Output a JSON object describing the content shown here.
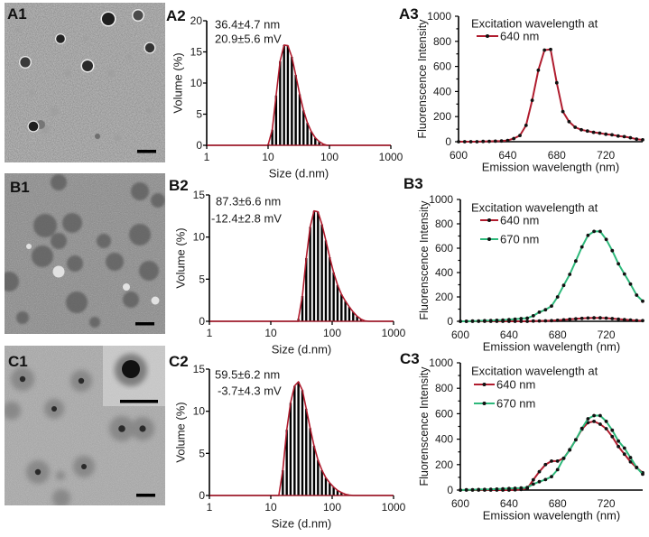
{
  "panels": {
    "A1": {
      "label": "A1",
      "content": "TEM image"
    },
    "A2": {
      "label": "A2"
    },
    "A3": {
      "label": "A3"
    },
    "B1": {
      "label": "B1",
      "content": "TEM image"
    },
    "B2": {
      "label": "B2"
    },
    "B3": {
      "label": "B3"
    },
    "C1": {
      "label": "C1",
      "content": "TEM image with inset"
    },
    "C2": {
      "label": "C2"
    },
    "C3": {
      "label": "C3"
    }
  },
  "colors": {
    "series_640": "#b01c2e",
    "series_670": "#2db87a",
    "bars": "#000000",
    "axis": "#000000"
  },
  "chart_data": [
    {
      "id": "A2",
      "kind": "dls",
      "type": "bar",
      "title": "",
      "annotations": [
        "36.4±4.7 nm",
        "20.9±5.6 mV"
      ],
      "xlabel": "Size (d.nm)",
      "ylabel": "Volume (%)",
      "xscale": "log",
      "xlim": [
        1,
        1000
      ],
      "ylim": [
        0,
        20
      ],
      "xticks": [
        1,
        10,
        100,
        1000
      ],
      "yticks": [
        0,
        5,
        10,
        15,
        20
      ],
      "grid": false,
      "x": [
        10.1,
        11.7,
        13.5,
        15.7,
        18.2,
        21.0,
        24.4,
        28.2,
        32.7,
        37.8,
        43.8,
        50.7,
        58.8,
        68.1,
        78.8,
        91.3
      ],
      "values": [
        0.2,
        2.5,
        8,
        13.5,
        16.1,
        16,
        14.2,
        11.3,
        8.2,
        5.6,
        3.6,
        2.2,
        1.2,
        0.6,
        0.2,
        0
      ]
    },
    {
      "id": "A3",
      "kind": "fluor",
      "type": "line",
      "title": "",
      "xlabel": "Emission wavelength (nm)",
      "ylabel": "Fluorenscence Intensity",
      "xlim": [
        600,
        750
      ],
      "ylim": [
        0,
        1000
      ],
      "xticks": [
        600,
        640,
        680,
        720
      ],
      "yticks": [
        0,
        200,
        400,
        600,
        800,
        1000
      ],
      "legend_title": "Excitation wavelength at",
      "legend_position": "upper center",
      "grid": false,
      "x": [
        600,
        605,
        610,
        615,
        620,
        625,
        630,
        635,
        640,
        645,
        650,
        655,
        660,
        665,
        670,
        675,
        680,
        685,
        690,
        695,
        700,
        705,
        710,
        715,
        720,
        725,
        730,
        735,
        740,
        745,
        750
      ],
      "series": [
        {
          "name": "640 nm",
          "color": "#b01c2e",
          "values": [
            0,
            0,
            0,
            0,
            2,
            3,
            4,
            6,
            10,
            25,
            50,
            130,
            330,
            570,
            730,
            735,
            470,
            240,
            160,
            115,
            95,
            85,
            75,
            68,
            60,
            55,
            45,
            40,
            32,
            20,
            15
          ]
        }
      ]
    },
    {
      "id": "B2",
      "kind": "dls",
      "type": "bar",
      "title": "",
      "annotations": [
        "87.3±6.6 nm",
        "-12.4±2.8 mV"
      ],
      "xlabel": "Size (d.nm)",
      "ylabel": "Volume (%)",
      "xscale": "log",
      "xlim": [
        1,
        1000
      ],
      "ylim": [
        0,
        15
      ],
      "xticks": [
        1,
        10,
        100,
        1000
      ],
      "yticks": [
        0,
        5,
        10,
        15
      ],
      "grid": false,
      "x": [
        28.2,
        32.7,
        37.8,
        43.8,
        50.7,
        58.8,
        68.1,
        78.8,
        91.3,
        105.7,
        122.4,
        141.8,
        164.2,
        190.1,
        220.2,
        255.0,
        295.3,
        342.0,
        396.1
      ],
      "values": [
        0.3,
        3,
        7.5,
        11.2,
        13.1,
        13,
        11.5,
        9.6,
        7.6,
        5.8,
        4.3,
        3.2,
        2.4,
        1.7,
        1.1,
        0.6,
        0.25,
        0.05,
        0
      ]
    },
    {
      "id": "B3",
      "kind": "fluor",
      "type": "line",
      "title": "",
      "xlabel": "Emission wavelength (nm)",
      "ylabel": "Fluorenscence Intensity",
      "xlim": [
        600,
        750
      ],
      "ylim": [
        0,
        1000
      ],
      "xticks": [
        600,
        640,
        680,
        720
      ],
      "yticks": [
        0,
        200,
        400,
        600,
        800,
        1000
      ],
      "legend_title": "Excitation wavelength at",
      "legend_position": "upper center",
      "grid": false,
      "x": [
        600,
        605,
        610,
        615,
        620,
        625,
        630,
        635,
        640,
        645,
        650,
        655,
        660,
        665,
        670,
        675,
        680,
        685,
        690,
        695,
        700,
        705,
        710,
        715,
        720,
        725,
        730,
        735,
        740,
        745,
        750
      ],
      "series": [
        {
          "name": "640 nm",
          "color": "#b01c2e",
          "values": [
            0,
            0,
            0,
            0,
            0,
            0,
            0,
            0,
            0,
            0,
            0,
            0,
            2,
            3,
            4,
            5,
            8,
            12,
            16,
            20,
            24,
            27,
            28,
            28,
            26,
            22,
            18,
            14,
            10,
            7,
            5
          ]
        },
        {
          "name": "670 nm",
          "color": "#2db87a",
          "values": [
            0,
            0,
            2,
            3,
            5,
            6,
            8,
            10,
            14,
            18,
            22,
            26,
            45,
            75,
            95,
            125,
            200,
            295,
            385,
            495,
            610,
            705,
            738,
            738,
            672,
            580,
            472,
            388,
            305,
            215,
            165
          ]
        }
      ]
    },
    {
      "id": "C2",
      "kind": "dls",
      "type": "bar",
      "title": "",
      "annotations": [
        "59.5±6.2 nm",
        "-3.7±4.3 mV"
      ],
      "xlabel": "Size (d.nm)",
      "ylabel": "Volume (%)",
      "xscale": "log",
      "xlim": [
        1,
        1000
      ],
      "ylim": [
        0,
        15
      ],
      "xticks": [
        1,
        10,
        100,
        1000
      ],
      "yticks": [
        0,
        5,
        10,
        15
      ],
      "grid": false,
      "x": [
        13.5,
        15.7,
        18.2,
        21.0,
        24.4,
        28.2,
        32.7,
        37.8,
        43.8,
        50.7,
        58.8,
        68.1,
        78.8,
        91.3,
        105.7,
        122.4,
        141.8,
        164.2,
        190.1,
        220.2
      ],
      "values": [
        0,
        3,
        7.8,
        11,
        13,
        13.5,
        12.5,
        10.3,
        8,
        5.9,
        4.2,
        3,
        2.1,
        1.5,
        1,
        0.6,
        0.35,
        0.15,
        0.05,
        0
      ]
    },
    {
      "id": "C3",
      "kind": "fluor",
      "type": "line",
      "title": "",
      "xlabel": "Emission wavelength (nm)",
      "ylabel": "Fluorenscence Intensity",
      "xlim": [
        600,
        750
      ],
      "ylim": [
        0,
        1000
      ],
      "xticks": [
        600,
        640,
        680,
        720
      ],
      "yticks": [
        0,
        200,
        400,
        600,
        800,
        1000
      ],
      "legend_title": "Excitation wavelength at",
      "legend_position": "upper center",
      "grid": false,
      "x": [
        600,
        605,
        610,
        615,
        620,
        625,
        630,
        635,
        640,
        645,
        650,
        655,
        660,
        665,
        670,
        675,
        680,
        685,
        690,
        695,
        700,
        705,
        710,
        715,
        720,
        725,
        730,
        735,
        740,
        745,
        750
      ],
      "series": [
        {
          "name": "640 nm",
          "color": "#b01c2e",
          "values": [
            0,
            0,
            0,
            0,
            0,
            0,
            0,
            0,
            0,
            2,
            5,
            12,
            80,
            145,
            200,
            228,
            228,
            250,
            318,
            395,
            478,
            530,
            540,
            518,
            482,
            420,
            342,
            282,
            222,
            176,
            136
          ]
        },
        {
          "name": "670 nm",
          "color": "#2db87a",
          "values": [
            0,
            2,
            3,
            4,
            5,
            6,
            8,
            10,
            12,
            14,
            16,
            20,
            47,
            66,
            82,
            106,
            160,
            250,
            315,
            395,
            485,
            560,
            585,
            585,
            540,
            470,
            385,
            330,
            255,
            178,
            125
          ]
        }
      ]
    }
  ]
}
